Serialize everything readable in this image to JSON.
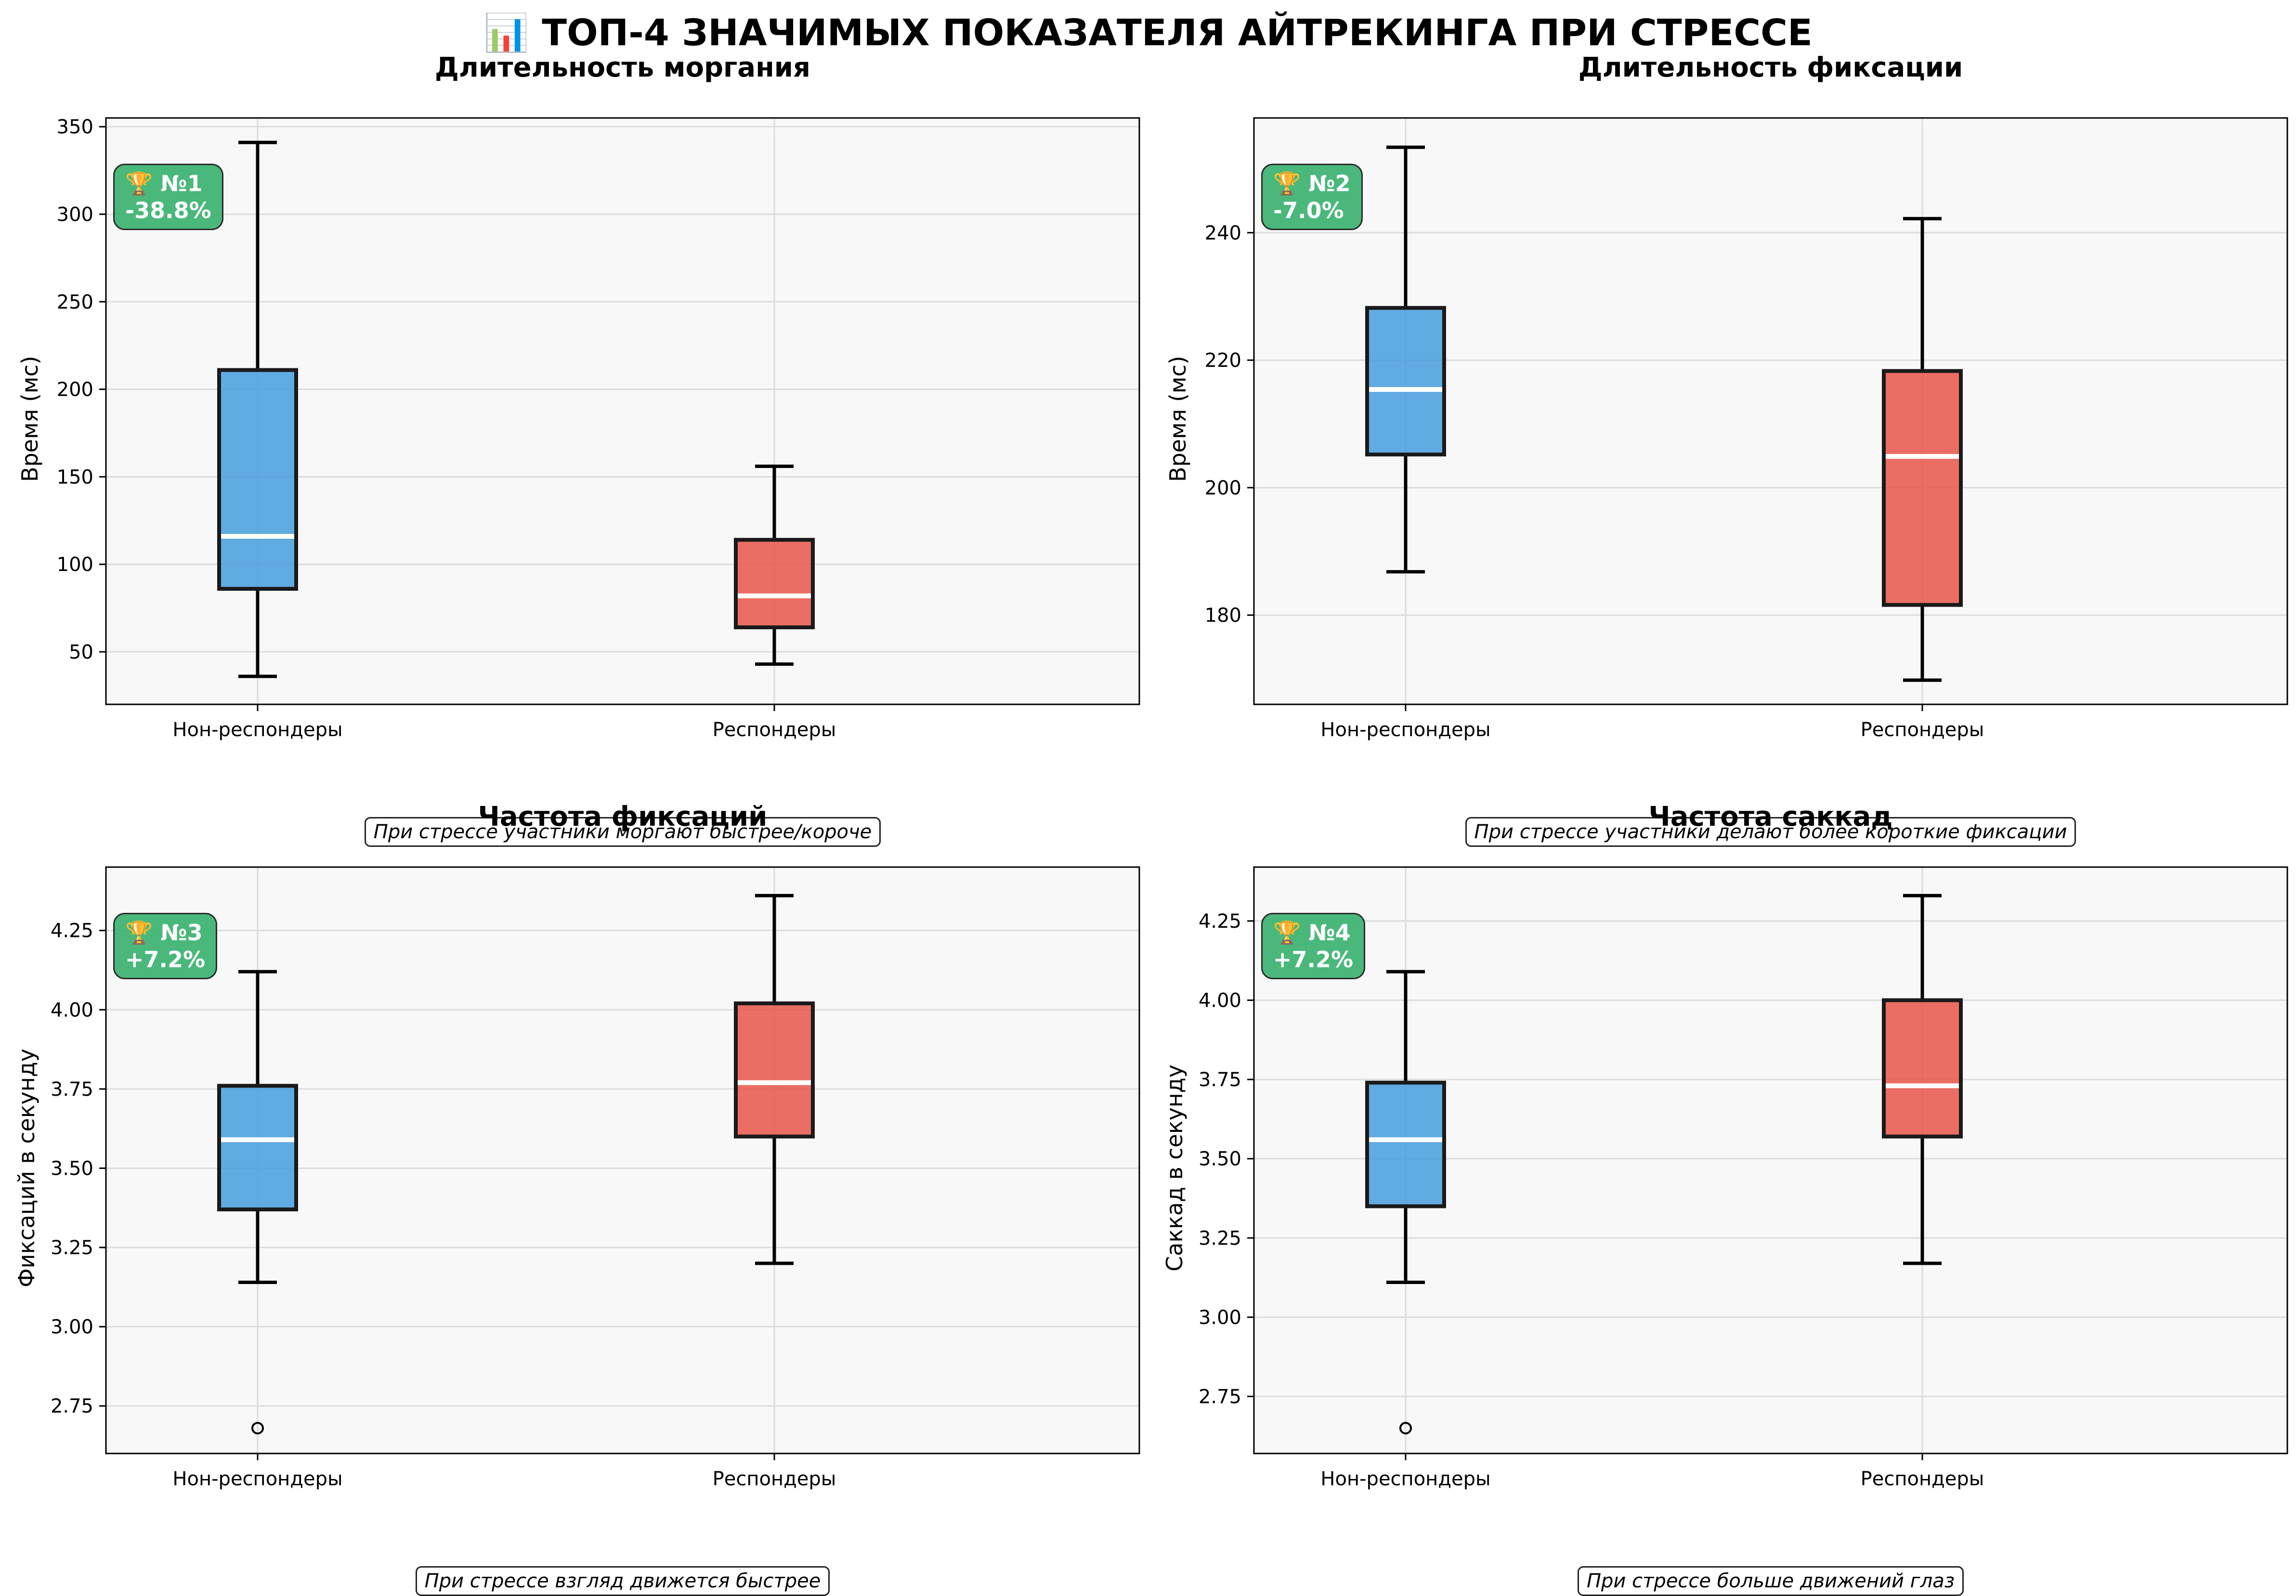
{
  "title": "📊 ТОП-4 ЗНАЧИМЫХ ПОКАЗАТЕЛЯ АЙТРЕКИНГА ПРИ СТРЕССЕ",
  "colors": {
    "non_responders": "#4a9fdd",
    "responders": "#e85a4f",
    "badge": "#3cb371",
    "median": "#ffffff",
    "plot_bg": "#f8f8f8"
  },
  "chart_data": [
    {
      "type": "box",
      "title": "Длительность моргания",
      "badge": {
        "rank": "🏆 №1",
        "change": "-38.8%"
      },
      "ylabel": "Время (мс)",
      "caption": "При стрессе участники моргают быстрее/короче",
      "ylim": [
        20,
        355
      ],
      "yticks": [
        50,
        100,
        150,
        200,
        250,
        300,
        350
      ],
      "tick_decimals": 0,
      "grid": true,
      "categories": [
        "Нон-респондеры",
        "Респондеры"
      ],
      "boxes": [
        {
          "whisker_low": 36,
          "q1": 86,
          "median": 116,
          "q3": 211,
          "whisker_high": 341,
          "outliers": []
        },
        {
          "whisker_low": 43,
          "q1": 64,
          "median": 82,
          "q3": 114,
          "whisker_high": 156,
          "outliers": []
        }
      ]
    },
    {
      "type": "box",
      "title": "Длительность фиксации",
      "badge": {
        "rank": "🏆 №2",
        "change": "-7.0%"
      },
      "ylabel": "Время (мс)",
      "caption": "При стрессе участники делают более короткие фиксации",
      "ylim": [
        166,
        258
      ],
      "yticks": [
        180,
        200,
        220,
        240
      ],
      "tick_decimals": 0,
      "grid": true,
      "categories": [
        "Нон-респондеры",
        "Респондеры"
      ],
      "boxes": [
        {
          "whisker_low": 186.8,
          "q1": 205.2,
          "median": 215.4,
          "q3": 228.2,
          "whisker_high": 253.4,
          "outliers": []
        },
        {
          "whisker_low": 169.8,
          "q1": 181.6,
          "median": 204.9,
          "q3": 218.3,
          "whisker_high": 242.2,
          "outliers": []
        }
      ]
    },
    {
      "type": "box",
      "title": "Частота фиксаций",
      "badge": {
        "rank": "🏆 №3",
        "change": "+7.2%"
      },
      "ylabel": "Фиксаций в секунду",
      "caption": "При стрессе взгляд движется быстрее",
      "ylim": [
        2.6,
        4.45
      ],
      "yticks": [
        2.75,
        3.0,
        3.25,
        3.5,
        3.75,
        4.0,
        4.25
      ],
      "tick_decimals": 2,
      "grid": true,
      "categories": [
        "Нон-респондеры",
        "Респондеры"
      ],
      "boxes": [
        {
          "whisker_low": 3.14,
          "q1": 3.37,
          "median": 3.59,
          "q3": 3.76,
          "whisker_high": 4.12,
          "outliers": [
            2.68
          ]
        },
        {
          "whisker_low": 3.2,
          "q1": 3.6,
          "median": 3.77,
          "q3": 4.02,
          "whisker_high": 4.36,
          "outliers": []
        }
      ]
    },
    {
      "type": "box",
      "title": "Частота саккад",
      "badge": {
        "rank": "🏆 №4",
        "change": "+7.2%"
      },
      "ylabel": "Саккад в секунду",
      "caption": "При стрессе больше движений глаз",
      "ylim": [
        2.57,
        4.42
      ],
      "yticks": [
        2.75,
        3.0,
        3.25,
        3.5,
        3.75,
        4.0,
        4.25
      ],
      "tick_decimals": 2,
      "grid": true,
      "categories": [
        "Нон-респондеры",
        "Респондеры"
      ],
      "boxes": [
        {
          "whisker_low": 3.11,
          "q1": 3.35,
          "median": 3.56,
          "q3": 3.74,
          "whisker_high": 4.09,
          "outliers": [
            2.65
          ]
        },
        {
          "whisker_low": 3.17,
          "q1": 3.57,
          "median": 3.73,
          "q3": 4.0,
          "whisker_high": 4.33,
          "outliers": []
        }
      ]
    }
  ]
}
